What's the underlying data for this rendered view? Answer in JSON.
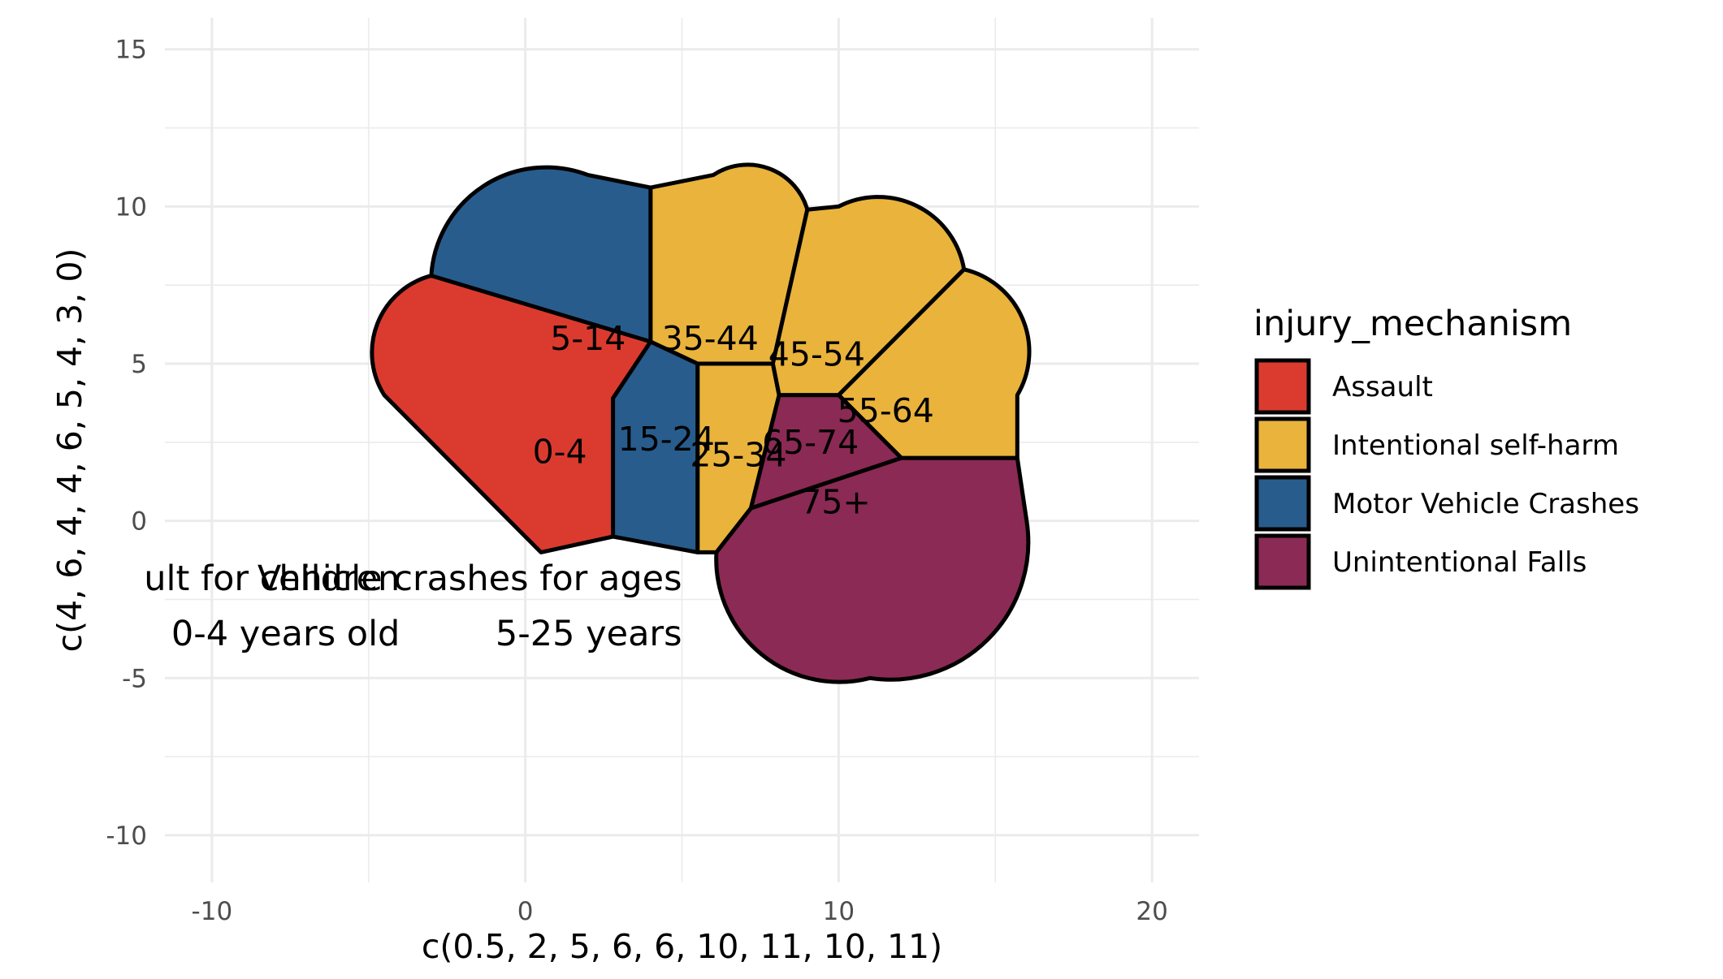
{
  "chart_data": {
    "type": "voronoi-treemap",
    "title": "",
    "xlabel": "c(0.5, 2, 5, 6, 6, 10, 11, 10, 11)",
    "ylabel": "c(4, 6, 4, 4, 6, 5, 4, 3, 0)",
    "xlim": [
      -11.5,
      21.5
    ],
    "ylim": [
      -11.5,
      16
    ],
    "x_ticks": [
      -10,
      0,
      10,
      20
    ],
    "y_ticks": [
      -10,
      -5,
      0,
      5,
      10,
      15
    ],
    "grid": true,
    "legend": {
      "title": "injury_mechanism",
      "position": "right",
      "entries": [
        {
          "label": "Assault",
          "color": "#DB3B2E"
        },
        {
          "label": "Intentional self-harm",
          "color": "#E9B33C"
        },
        {
          "label": "Motor Vehicle Crashes",
          "color": "#285C8C"
        },
        {
          "label": "Unintentional Falls",
          "color": "#8B2A54"
        }
      ]
    },
    "cells": [
      {
        "label": "0-4",
        "group": "Assault",
        "label_x": 1.1,
        "label_y": 2.2,
        "polygon": [
          [
            -3.0,
            7.8
          ],
          [
            4.0,
            5.7
          ],
          [
            2.8,
            3.9
          ],
          [
            2.8,
            -0.5
          ],
          [
            0.5,
            -1.0
          ],
          [
            -4.5,
            4.0
          ]
        ]
      },
      {
        "label": "5-14",
        "group": "Motor Vehicle Crashes",
        "label_x": 2.0,
        "label_y": 5.8,
        "polygon": [
          [
            -3.0,
            7.8
          ],
          [
            2.0,
            11.0
          ],
          [
            4.0,
            10.6
          ],
          [
            4.0,
            5.7
          ]
        ]
      },
      {
        "label": "15-24",
        "group": "Motor Vehicle Crashes",
        "label_x": 4.5,
        "label_y": 2.6,
        "polygon": [
          [
            4.0,
            5.7
          ],
          [
            5.5,
            5.0
          ],
          [
            5.5,
            -1.0
          ],
          [
            2.8,
            -0.5
          ],
          [
            2.8,
            3.9
          ]
        ]
      },
      {
        "label": "35-44",
        "group": "Intentional self-harm",
        "label_x": 5.9,
        "label_y": 5.8,
        "polygon": [
          [
            4.0,
            10.6
          ],
          [
            6.0,
            11.0
          ],
          [
            9.0,
            9.9
          ],
          [
            7.9,
            5.0
          ],
          [
            5.5,
            5.0
          ],
          [
            4.0,
            5.7
          ]
        ]
      },
      {
        "label": "25-34",
        "group": "Intentional self-harm",
        "label_x": 6.8,
        "label_y": 2.1,
        "polygon": [
          [
            5.5,
            5.0
          ],
          [
            7.9,
            5.0
          ],
          [
            8.1,
            4.0
          ],
          [
            7.2,
            0.4
          ],
          [
            6.1,
            -1.0
          ],
          [
            5.5,
            -1.0
          ]
        ]
      },
      {
        "label": "45-54",
        "group": "Intentional self-harm",
        "label_x": 9.3,
        "label_y": 5.3,
        "polygon": [
          [
            9.0,
            9.9
          ],
          [
            10.0,
            10.0
          ],
          [
            14.0,
            8.0
          ],
          [
            10.0,
            4.0
          ],
          [
            8.1,
            4.0
          ],
          [
            7.9,
            5.0
          ]
        ]
      },
      {
        "label": "55-64",
        "group": "Intentional self-harm",
        "label_x": 11.5,
        "label_y": 3.5,
        "polygon": [
          [
            14.0,
            8.0
          ],
          [
            15.7,
            4.0
          ],
          [
            15.7,
            2.0
          ],
          [
            12.0,
            2.0
          ],
          [
            10.0,
            4.0
          ]
        ]
      },
      {
        "label": "65-74",
        "group": "Unintentional Falls",
        "label_x": 9.1,
        "label_y": 2.5,
        "polygon": [
          [
            8.1,
            4.0
          ],
          [
            10.0,
            4.0
          ],
          [
            12.0,
            2.0
          ],
          [
            7.2,
            0.4
          ]
        ]
      },
      {
        "label": "75+",
        "group": "Unintentional Falls",
        "label_x": 9.9,
        "label_y": 0.6,
        "polygon": [
          [
            7.2,
            0.4
          ],
          [
            12.0,
            2.0
          ],
          [
            15.7,
            2.0
          ],
          [
            16.0,
            0.0
          ],
          [
            11.0,
            -5.0
          ],
          [
            6.1,
            -1.0
          ]
        ]
      }
    ],
    "annotations": [
      {
        "lines": [
          "Vehicle crashes for ages",
          "5-25 years"
        ],
        "x": 5.0,
        "y": -2.2,
        "anchor": "end"
      },
      {
        "lines": [
          "Assault for children",
          "0-4 years old"
        ],
        "x": -4.0,
        "y": -2.2,
        "anchor": "end"
      }
    ]
  }
}
